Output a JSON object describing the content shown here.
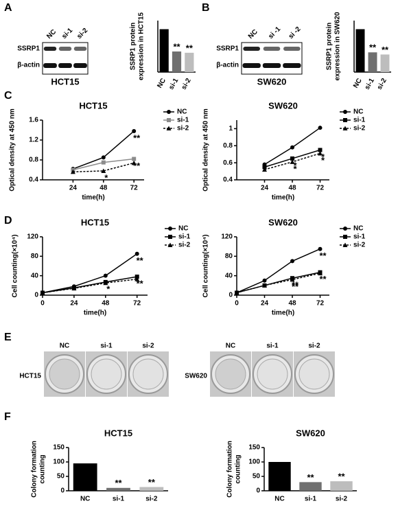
{
  "panel_labels": [
    "A",
    "B",
    "C",
    "D",
    "E",
    "F"
  ],
  "blots": [
    {
      "lanes": [
        "NC",
        "si-1",
        "si-2"
      ],
      "rows": [
        "SSRP1",
        "β-actin"
      ],
      "cell_line": "HCT15"
    },
    {
      "lanes": [
        "NC",
        "si -1",
        "si -2"
      ],
      "rows": [
        "SSRP1",
        "β-actin"
      ],
      "cell_line": "SW620"
    }
  ],
  "plates": [
    {
      "lanes": [
        "NC",
        "si-1",
        "si-2"
      ],
      "cell_line": "HCT15"
    },
    {
      "lanes": [
        "NC",
        "si-1",
        "si-2"
      ],
      "cell_line": "SW620"
    }
  ],
  "chart_data": [
    {
      "type": "bar",
      "ylabel": [
        "SSRP1 protein",
        "expression in HCT15"
      ],
      "categories": [
        "NC",
        "si-1",
        "si-2"
      ],
      "values": [
        1.0,
        0.48,
        0.45
      ],
      "colors": [
        "#000000",
        "#707070",
        "#bdbdbd"
      ],
      "annotations": [
        null,
        "**",
        "**"
      ],
      "ylim": [
        0,
        1.2
      ]
    },
    {
      "type": "bar",
      "ylabel": [
        "SSRP1 protein",
        "expression in SW620"
      ],
      "categories": [
        "NC",
        "si-1",
        "si-2"
      ],
      "values": [
        1.0,
        0.46,
        0.41
      ],
      "colors": [
        "#000000",
        "#707070",
        "#bdbdbd"
      ],
      "annotations": [
        null,
        "**",
        "**"
      ],
      "ylim": [
        0,
        1.2
      ]
    },
    {
      "type": "line",
      "title": "HCT15",
      "xlabel": "time(h)",
      "ylabel": "Optical density at 450 nm",
      "x": [
        24,
        48,
        72
      ],
      "xlim": [
        0,
        80
      ],
      "xticks": [
        24,
        48,
        72
      ],
      "ylim": [
        0.4,
        1.6
      ],
      "yticks": [
        0.4,
        0.8,
        1.2,
        1.6
      ],
      "series": [
        {
          "name": "NC",
          "color": "#000000",
          "marker": "circle",
          "dashed": false,
          "values": [
            0.62,
            0.85,
            1.38
          ],
          "annotations": [
            null,
            null,
            "**"
          ]
        },
        {
          "name": "si-1",
          "color": "#8c8c8c",
          "marker": "square",
          "dashed": false,
          "values": [
            0.6,
            0.75,
            0.82
          ],
          "annotations": [
            null,
            null,
            "**"
          ]
        },
        {
          "name": "si-2",
          "color": "#000000",
          "marker": "triangle",
          "dashed": true,
          "values": [
            0.56,
            0.58,
            0.74
          ],
          "annotations": [
            null,
            "*",
            null
          ]
        }
      ]
    },
    {
      "type": "line",
      "title": "SW620",
      "xlabel": "time(h)",
      "ylabel": "Optical density at 450 nm",
      "x": [
        24,
        48,
        72
      ],
      "xlim": [
        0,
        80
      ],
      "xticks": [
        24,
        48,
        72
      ],
      "ylim": [
        0.4,
        1.1
      ],
      "yticks": [
        0.4,
        0.6,
        0.8,
        1.0
      ],
      "series": [
        {
          "name": "NC",
          "color": "#000000",
          "marker": "circle",
          "dashed": false,
          "values": [
            0.58,
            0.78,
            1.01
          ],
          "annotations": [
            null,
            null,
            null
          ]
        },
        {
          "name": "si-1",
          "color": "#000000",
          "marker": "square",
          "dashed": false,
          "values": [
            0.55,
            0.65,
            0.75
          ],
          "annotations": [
            null,
            "*",
            "*"
          ]
        },
        {
          "name": "si-2",
          "color": "#000000",
          "marker": "triangle",
          "dashed": true,
          "values": [
            0.52,
            0.61,
            0.71
          ],
          "annotations": [
            null,
            "*",
            "*"
          ]
        }
      ]
    },
    {
      "type": "line",
      "title": "HCT15",
      "xlabel": "time(h)",
      "ylabel": "Cell counting(×10⁴)",
      "x": [
        0,
        24,
        48,
        72
      ],
      "xlim": [
        0,
        80
      ],
      "xticks": [
        0,
        24,
        48,
        72
      ],
      "ylim": [
        0,
        120
      ],
      "yticks": [
        0,
        40,
        80,
        120
      ],
      "series": [
        {
          "name": "NC",
          "color": "#000000",
          "marker": "circle",
          "dashed": false,
          "values": [
            5,
            18,
            40,
            85
          ],
          "annotations": [
            null,
            null,
            null,
            "**"
          ]
        },
        {
          "name": "si-1",
          "color": "#000000",
          "marker": "square",
          "dashed": false,
          "values": [
            5,
            15,
            27,
            38
          ],
          "annotations": [
            null,
            null,
            "*",
            "**"
          ]
        },
        {
          "name": "si-2",
          "color": "#000000",
          "marker": "triangle",
          "dashed": true,
          "values": [
            5,
            14,
            25,
            33
          ],
          "annotations": [
            null,
            null,
            null,
            null
          ]
        }
      ]
    },
    {
      "type": "line",
      "title": "SW620",
      "xlabel": "time(h)",
      "ylabel": "Cell counting(×10⁴)",
      "x": [
        0,
        24,
        48,
        72
      ],
      "xlim": [
        0,
        80
      ],
      "xticks": [
        0,
        24,
        48,
        72
      ],
      "ylim": [
        0,
        120
      ],
      "yticks": [
        0,
        40,
        80,
        120
      ],
      "series": [
        {
          "name": "NC",
          "color": "#000000",
          "marker": "circle",
          "dashed": false,
          "values": [
            5,
            30,
            70,
            95
          ],
          "annotations": [
            null,
            null,
            null,
            "**"
          ]
        },
        {
          "name": "si-1",
          "color": "#000000",
          "marker": "square",
          "dashed": false,
          "values": [
            5,
            20,
            35,
            47
          ],
          "annotations": [
            null,
            null,
            "**",
            "**"
          ]
        },
        {
          "name": "si-2",
          "color": "#000000",
          "marker": "triangle",
          "dashed": true,
          "values": [
            5,
            20,
            32,
            45
          ],
          "annotations": [
            null,
            null,
            "**",
            null
          ]
        }
      ]
    },
    {
      "type": "bar",
      "title": "HCT15",
      "ylabel": [
        "Colony formation",
        "counting"
      ],
      "categories": [
        "NC",
        "si-1",
        "si-2"
      ],
      "values": [
        95,
        10,
        13
      ],
      "colors": [
        "#000000",
        "#707070",
        "#bdbdbd"
      ],
      "annotations": [
        null,
        "**",
        "**"
      ],
      "ylim": [
        0,
        150
      ],
      "yticks": [
        0,
        50,
        100,
        150
      ]
    },
    {
      "type": "bar",
      "title": "SW620",
      "ylabel": [
        "Colony formation",
        "counting"
      ],
      "categories": [
        "NC",
        "si-1",
        "si-2"
      ],
      "values": [
        100,
        30,
        33
      ],
      "colors": [
        "#000000",
        "#707070",
        "#bdbdbd"
      ],
      "annotations": [
        null,
        "**",
        "**"
      ],
      "ylim": [
        0,
        150
      ],
      "yticks": [
        0,
        50,
        100,
        150
      ]
    }
  ]
}
